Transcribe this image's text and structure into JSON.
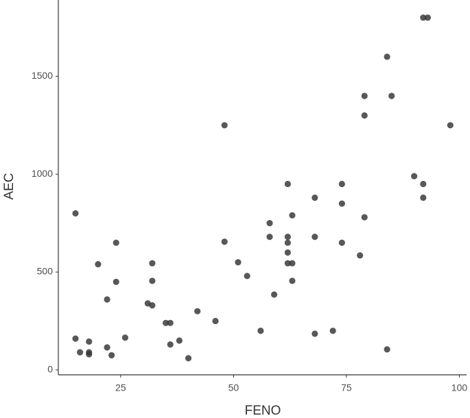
{
  "chart_data": {
    "type": "scatter",
    "x_label": "FENO",
    "y_label": "AEC",
    "color": "#333333",
    "xlim": [
      11.2,
      101.6
    ],
    "ylim": [
      -25,
      1890
    ],
    "xticks": [
      25,
      50,
      75,
      100
    ],
    "yticks": [
      0,
      500,
      1000,
      1500
    ],
    "x": [
      15,
      15,
      16,
      18,
      18,
      18,
      20,
      22,
      22,
      23,
      24,
      24,
      26,
      31,
      32,
      32,
      32,
      35,
      36,
      36,
      38,
      40,
      42,
      46,
      48,
      48,
      51,
      53,
      56,
      58,
      58,
      59,
      62,
      62,
      62,
      62,
      62,
      63,
      63,
      63,
      68,
      68,
      68,
      72,
      74,
      74,
      74,
      79,
      78,
      79,
      79,
      84,
      85,
      84,
      90,
      92,
      92,
      92,
      93,
      98
    ],
    "values": [
      800,
      160,
      90,
      145,
      90,
      80,
      540,
      115,
      360,
      75,
      650,
      450,
      165,
      340,
      545,
      455,
      330,
      240,
      240,
      130,
      150,
      60,
      300,
      250,
      1250,
      655,
      550,
      480,
      200,
      750,
      680,
      385,
      950,
      680,
      650,
      600,
      545,
      545,
      790,
      455,
      880,
      680,
      185,
      200,
      950,
      850,
      650,
      780,
      585,
      1400,
      1300,
      1600,
      1400,
      105,
      990,
      950,
      880,
      1800,
      1800,
      1250
    ]
  }
}
